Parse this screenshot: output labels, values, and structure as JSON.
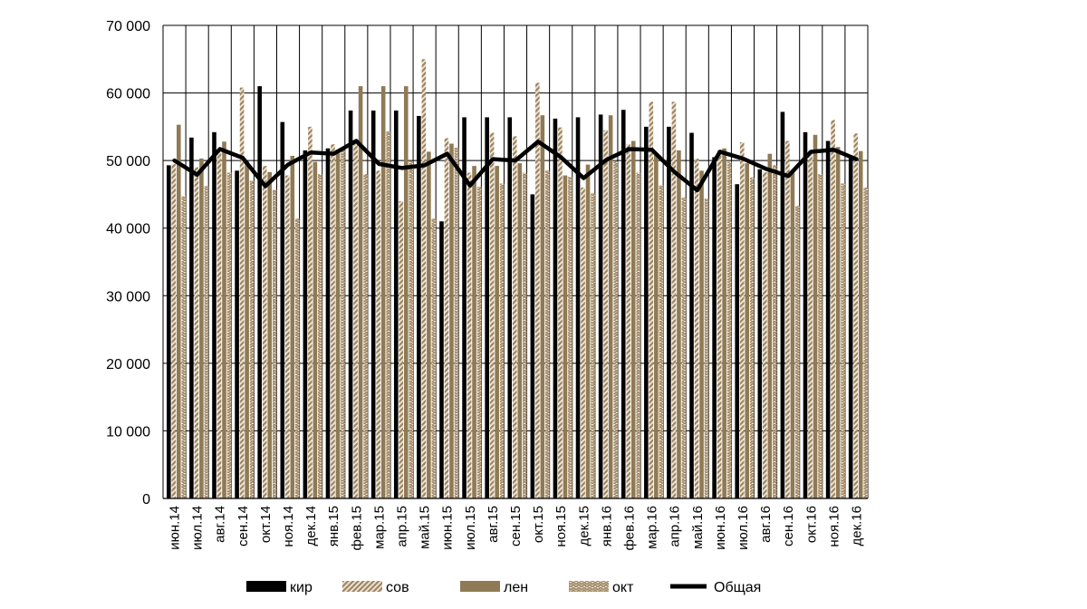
{
  "chart_data": {
    "type": "bar",
    "title": "",
    "xlabel": "",
    "ylabel": "",
    "ylim": [
      0,
      70000
    ],
    "yticks": [
      0,
      10000,
      20000,
      30000,
      40000,
      50000,
      60000,
      70000
    ],
    "ytick_labels": [
      "0",
      "10 000",
      "20 000",
      "30 000",
      "40 000",
      "50 000",
      "60 000",
      "70 000"
    ],
    "grid": true,
    "legend_position": "bottom",
    "categories": [
      "июн.14",
      "июл.14",
      "авг.14",
      "сен.14",
      "окт.14",
      "ноя.14",
      "дек.14",
      "янв.15",
      "фев.15",
      "мар.15",
      "апр.15",
      "май.15",
      "июн.15",
      "июл.15",
      "авг.15",
      "сен.15",
      "окт.15",
      "ноя.15",
      "дек.15",
      "янв.16",
      "фев.16",
      "мар.16",
      "апр.16",
      "май.16",
      "июн.16",
      "июл.16",
      "авг.16",
      "сен.16",
      "окт.16",
      "ноя.16",
      "дек.16"
    ],
    "series": [
      {
        "name": "кир",
        "kind": "bar",
        "color": "#000000",
        "pattern": "solid",
        "values": [
          49300,
          53400,
          54200,
          48500,
          61000,
          55700,
          51500,
          51800,
          57400,
          57400,
          57400,
          56600,
          41000,
          56400,
          56400,
          56400,
          45000,
          56200,
          56400,
          56800,
          57500,
          55000,
          55000,
          54100,
          50500,
          46500,
          48700,
          57200,
          54200,
          52900,
          50600
        ]
      },
      {
        "name": "сов",
        "kind": "bar",
        "color": "#9c8462",
        "pattern": "stripes",
        "values": [
          49500,
          49000,
          51200,
          60800,
          49200,
          47800,
          55000,
          52400,
          52500,
          48500,
          44000,
          65000,
          53300,
          48200,
          54100,
          53600,
          61500,
          54900,
          46000,
          54500,
          52400,
          58700,
          58700,
          50300,
          51500,
          52700,
          48300,
          52900,
          51400,
          56000,
          54000
        ]
      },
      {
        "name": "лен",
        "kind": "bar",
        "color": "#8f7a55",
        "pattern": "solid",
        "values": [
          55300,
          50300,
          52800,
          49900,
          48300,
          50700,
          49800,
          51600,
          61000,
          61000,
          61000,
          51300,
          52500,
          49200,
          49200,
          49600,
          56700,
          47800,
          49400,
          56700,
          52900,
          51000,
          51500,
          48500,
          51800,
          49600,
          51000,
          48200,
          53800,
          52000,
          51400
        ]
      },
      {
        "name": "окт",
        "kind": "bar",
        "color": "#9c8462",
        "pattern": "chevron",
        "values": [
          44700,
          46200,
          48200,
          47000,
          45700,
          41400,
          48000,
          51900,
          48000,
          54300,
          49900,
          41400,
          51900,
          46100,
          46600,
          48200,
          48500,
          47600,
          45200,
          49900,
          48200,
          46300,
          44500,
          44400,
          49800,
          47500,
          49300,
          43300,
          48000,
          46600,
          46000
        ]
      },
      {
        "name": "Общая",
        "kind": "line",
        "color": "#000000",
        "values": [
          50000,
          47900,
          51700,
          50400,
          46200,
          49400,
          51200,
          51000,
          52900,
          49500,
          48900,
          49300,
          51000,
          46300,
          50200,
          50000,
          52800,
          50500,
          47400,
          50100,
          51700,
          51600,
          48300,
          45600,
          51300,
          50300,
          48800,
          47700,
          51300,
          51600,
          50200
        ]
      }
    ]
  }
}
